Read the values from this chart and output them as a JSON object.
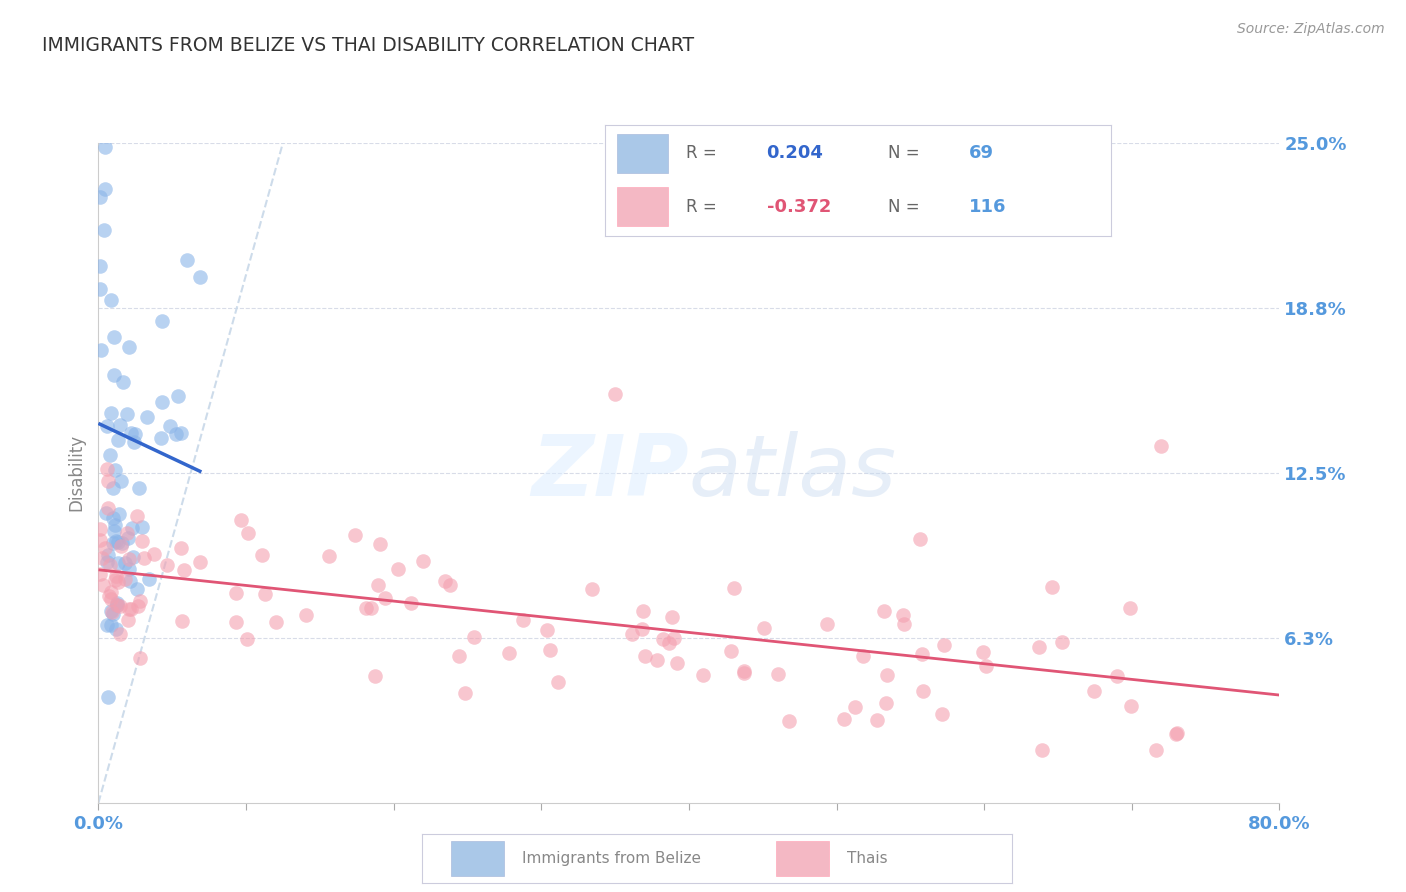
{
  "title": "IMMIGRANTS FROM BELIZE VS THAI DISABILITY CORRELATION CHART",
  "source": "Source: ZipAtlas.com",
  "ylabel": "Disability",
  "r_belize": 0.204,
  "n_belize": 69,
  "r_thai": -0.372,
  "n_thai": 116,
  "xlim": [
    0.0,
    0.8
  ],
  "ylim": [
    0.0,
    0.25
  ],
  "ytick_vals": [
    0.0,
    0.0625,
    0.125,
    0.1875,
    0.25
  ],
  "ytick_labels": [
    "",
    "6.3%",
    "12.5%",
    "18.8%",
    "25.0%"
  ],
  "xtick_vals": [
    0.0,
    0.1,
    0.2,
    0.3,
    0.4,
    0.5,
    0.6,
    0.7,
    0.8
  ],
  "xtick_labels": [
    "0.0%",
    "",
    "",
    "",
    "",
    "",
    "",
    "",
    "80.0%"
  ],
  "color_belize": "#8ab4e8",
  "color_thai": "#f4a0b0",
  "line_color_belize": "#3366cc",
  "line_color_thai": "#e05575",
  "ref_line_color": "#c8d8e8",
  "title_color": "#333333",
  "tick_label_color": "#5599dd",
  "grid_color": "#d8dce8",
  "bg_color": "#FFFFFF",
  "legend_facecolor_belize": "#aac8e8",
  "legend_facecolor_thai": "#f4b8c4",
  "source_color": "#999999",
  "ylabel_color": "#888888",
  "watermark_color": "#ddeeff",
  "bottom_legend_color": "#888888"
}
